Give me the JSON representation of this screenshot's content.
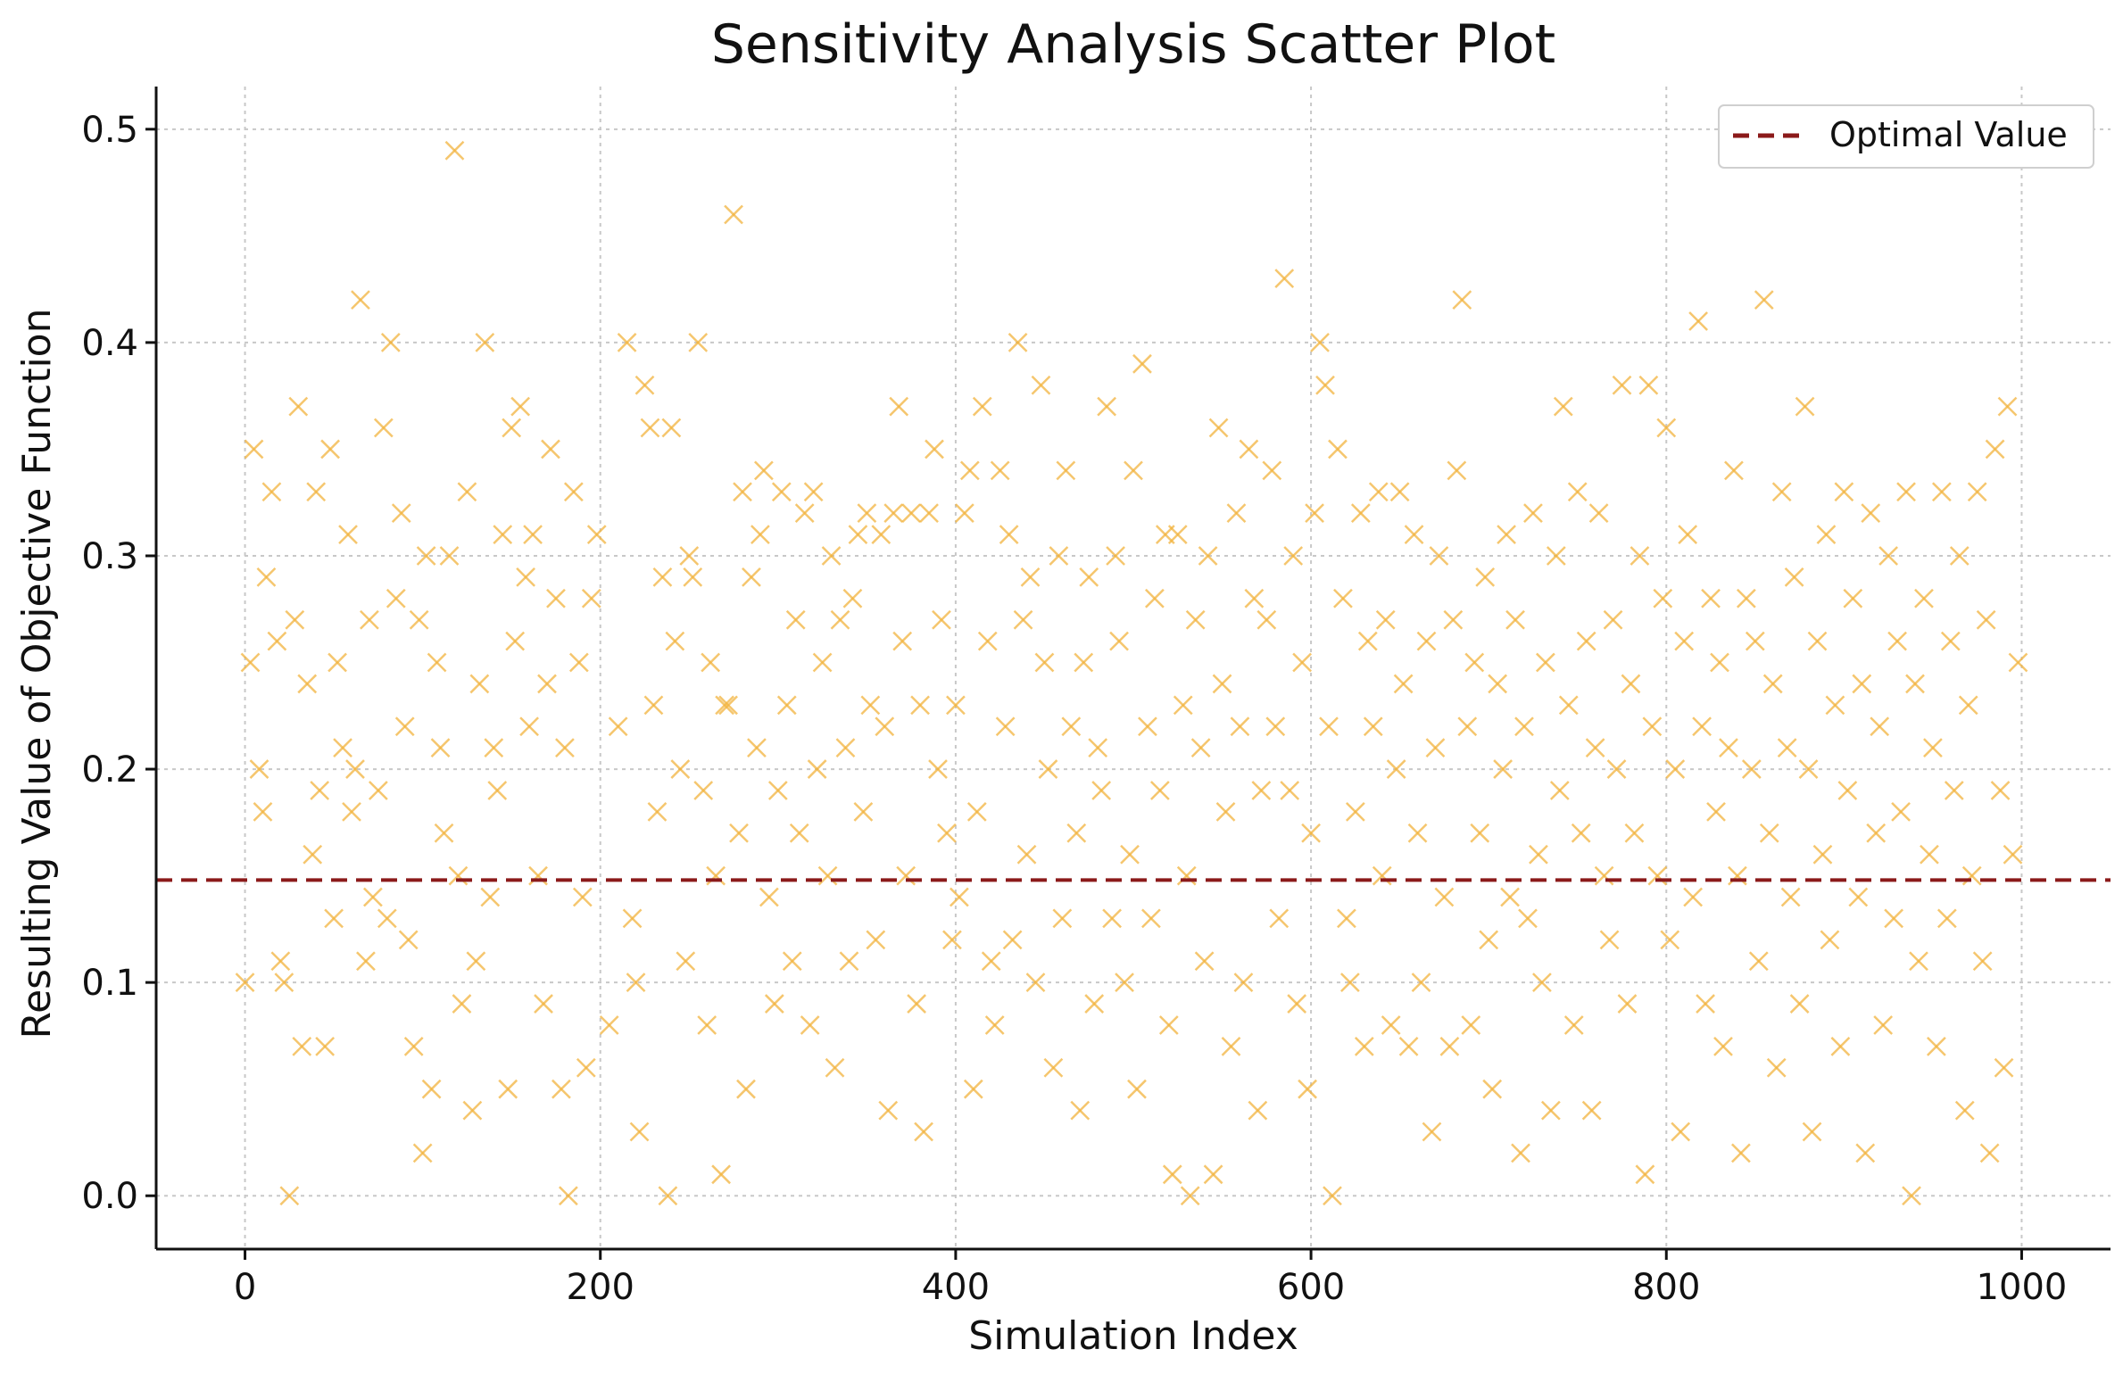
{
  "chart_data": {
    "type": "scatter",
    "title": "Sensitivity Analysis Scatter Plot",
    "xlabel": "Simulation Index",
    "ylabel": "Resulting Value of Objective Function",
    "xlim": [
      -50,
      1050
    ],
    "ylim": [
      -0.025,
      0.52
    ],
    "xticks": [
      0,
      200,
      400,
      600,
      800,
      1000
    ],
    "yticks": [
      0.0,
      0.1,
      0.2,
      0.3,
      0.4,
      0.5
    ],
    "xtick_labels": [
      "0",
      "200",
      "400",
      "600",
      "800",
      "1000"
    ],
    "ytick_labels": [
      "0.0",
      "0.1",
      "0.2",
      "0.3",
      "0.4",
      "0.5"
    ],
    "grid": true,
    "legend_position": "top-right",
    "marker": "x",
    "marker_color": "#f2b33d",
    "points": [
      [
        0,
        0.1
      ],
      [
        3,
        0.25
      ],
      [
        5,
        0.35
      ],
      [
        8,
        0.2
      ],
      [
        10,
        0.18
      ],
      [
        12,
        0.29
      ],
      [
        15,
        0.33
      ],
      [
        18,
        0.26
      ],
      [
        20,
        0.11
      ],
      [
        22,
        0.1
      ],
      [
        25,
        0.0
      ],
      [
        28,
        0.27
      ],
      [
        30,
        0.37
      ],
      [
        32,
        0.07
      ],
      [
        35,
        0.24
      ],
      [
        38,
        0.16
      ],
      [
        40,
        0.33
      ],
      [
        42,
        0.19
      ],
      [
        45,
        0.07
      ],
      [
        48,
        0.35
      ],
      [
        50,
        0.13
      ],
      [
        52,
        0.25
      ],
      [
        55,
        0.21
      ],
      [
        58,
        0.31
      ],
      [
        60,
        0.18
      ],
      [
        62,
        0.2
      ],
      [
        65,
        0.42
      ],
      [
        68,
        0.11
      ],
      [
        70,
        0.27
      ],
      [
        72,
        0.14
      ],
      [
        75,
        0.19
      ],
      [
        78,
        0.36
      ],
      [
        80,
        0.13
      ],
      [
        82,
        0.4
      ],
      [
        85,
        0.28
      ],
      [
        88,
        0.32
      ],
      [
        90,
        0.22
      ],
      [
        92,
        0.12
      ],
      [
        95,
        0.07
      ],
      [
        98,
        0.27
      ],
      [
        100,
        0.02
      ],
      [
        102,
        0.3
      ],
      [
        105,
        0.05
      ],
      [
        108,
        0.25
      ],
      [
        110,
        0.21
      ],
      [
        112,
        0.17
      ],
      [
        115,
        0.3
      ],
      [
        118,
        0.49
      ],
      [
        120,
        0.15
      ],
      [
        122,
        0.09
      ],
      [
        125,
        0.33
      ],
      [
        128,
        0.04
      ],
      [
        130,
        0.11
      ],
      [
        132,
        0.24
      ],
      [
        135,
        0.4
      ],
      [
        138,
        0.14
      ],
      [
        140,
        0.21
      ],
      [
        142,
        0.19
      ],
      [
        145,
        0.31
      ],
      [
        148,
        0.05
      ],
      [
        150,
        0.36
      ],
      [
        152,
        0.26
      ],
      [
        155,
        0.37
      ],
      [
        158,
        0.29
      ],
      [
        160,
        0.22
      ],
      [
        162,
        0.31
      ],
      [
        165,
        0.15
      ],
      [
        168,
        0.09
      ],
      [
        170,
        0.24
      ],
      [
        172,
        0.35
      ],
      [
        175,
        0.28
      ],
      [
        178,
        0.05
      ],
      [
        180,
        0.21
      ],
      [
        182,
        0.0
      ],
      [
        185,
        0.33
      ],
      [
        188,
        0.25
      ],
      [
        190,
        0.14
      ],
      [
        192,
        0.06
      ],
      [
        195,
        0.28
      ],
      [
        198,
        0.31
      ],
      [
        205,
        0.08
      ],
      [
        210,
        0.22
      ],
      [
        215,
        0.4
      ],
      [
        218,
        0.13
      ],
      [
        220,
        0.1
      ],
      [
        222,
        0.03
      ],
      [
        225,
        0.38
      ],
      [
        228,
        0.36
      ],
      [
        230,
        0.23
      ],
      [
        232,
        0.18
      ],
      [
        235,
        0.29
      ],
      [
        238,
        0.0
      ],
      [
        240,
        0.36
      ],
      [
        242,
        0.26
      ],
      [
        245,
        0.2
      ],
      [
        248,
        0.11
      ],
      [
        250,
        0.3
      ],
      [
        252,
        0.29
      ],
      [
        255,
        0.4
      ],
      [
        258,
        0.19
      ],
      [
        260,
        0.08
      ],
      [
        262,
        0.25
      ],
      [
        265,
        0.15
      ],
      [
        268,
        0.01
      ],
      [
        270,
        0.23
      ],
      [
        272,
        0.23
      ],
      [
        275,
        0.46
      ],
      [
        278,
        0.17
      ],
      [
        280,
        0.33
      ],
      [
        282,
        0.05
      ],
      [
        285,
        0.29
      ],
      [
        288,
        0.21
      ],
      [
        290,
        0.31
      ],
      [
        292,
        0.34
      ],
      [
        295,
        0.14
      ],
      [
        298,
        0.09
      ],
      [
        300,
        0.19
      ],
      [
        302,
        0.33
      ],
      [
        305,
        0.23
      ],
      [
        308,
        0.11
      ],
      [
        310,
        0.27
      ],
      [
        312,
        0.17
      ],
      [
        315,
        0.32
      ],
      [
        318,
        0.08
      ],
      [
        320,
        0.33
      ],
      [
        322,
        0.2
      ],
      [
        325,
        0.25
      ],
      [
        328,
        0.15
      ],
      [
        330,
        0.3
      ],
      [
        332,
        0.06
      ],
      [
        335,
        0.27
      ],
      [
        338,
        0.21
      ],
      [
        340,
        0.11
      ],
      [
        342,
        0.28
      ],
      [
        345,
        0.31
      ],
      [
        348,
        0.18
      ],
      [
        350,
        0.32
      ],
      [
        352,
        0.23
      ],
      [
        355,
        0.12
      ],
      [
        358,
        0.31
      ],
      [
        360,
        0.22
      ],
      [
        362,
        0.04
      ],
      [
        365,
        0.32
      ],
      [
        368,
        0.37
      ],
      [
        370,
        0.26
      ],
      [
        372,
        0.15
      ],
      [
        375,
        0.32
      ],
      [
        378,
        0.09
      ],
      [
        380,
        0.23
      ],
      [
        382,
        0.03
      ],
      [
        385,
        0.32
      ],
      [
        388,
        0.35
      ],
      [
        390,
        0.2
      ],
      [
        392,
        0.27
      ],
      [
        395,
        0.17
      ],
      [
        398,
        0.12
      ],
      [
        400,
        0.23
      ],
      [
        402,
        0.14
      ],
      [
        405,
        0.32
      ],
      [
        408,
        0.34
      ],
      [
        410,
        0.05
      ],
      [
        412,
        0.18
      ],
      [
        415,
        0.37
      ],
      [
        418,
        0.26
      ],
      [
        420,
        0.11
      ],
      [
        422,
        0.08
      ],
      [
        425,
        0.34
      ],
      [
        428,
        0.22
      ],
      [
        430,
        0.31
      ],
      [
        432,
        0.12
      ],
      [
        435,
        0.4
      ],
      [
        438,
        0.27
      ],
      [
        440,
        0.16
      ],
      [
        442,
        0.29
      ],
      [
        445,
        0.1
      ],
      [
        448,
        0.38
      ],
      [
        450,
        0.25
      ],
      [
        452,
        0.2
      ],
      [
        455,
        0.06
      ],
      [
        458,
        0.3
      ],
      [
        460,
        0.13
      ],
      [
        462,
        0.34
      ],
      [
        465,
        0.22
      ],
      [
        468,
        0.17
      ],
      [
        470,
        0.04
      ],
      [
        472,
        0.25
      ],
      [
        475,
        0.29
      ],
      [
        478,
        0.09
      ],
      [
        480,
        0.21
      ],
      [
        482,
        0.19
      ],
      [
        485,
        0.37
      ],
      [
        488,
        0.13
      ],
      [
        490,
        0.3
      ],
      [
        492,
        0.26
      ],
      [
        495,
        0.1
      ],
      [
        498,
        0.16
      ],
      [
        500,
        0.34
      ],
      [
        502,
        0.05
      ],
      [
        505,
        0.39
      ],
      [
        508,
        0.22
      ],
      [
        510,
        0.13
      ],
      [
        512,
        0.28
      ],
      [
        515,
        0.19
      ],
      [
        518,
        0.31
      ],
      [
        520,
        0.08
      ],
      [
        522,
        0.01
      ],
      [
        525,
        0.31
      ],
      [
        528,
        0.23
      ],
      [
        530,
        0.15
      ],
      [
        532,
        0.0
      ],
      [
        535,
        0.27
      ],
      [
        538,
        0.21
      ],
      [
        540,
        0.11
      ],
      [
        542,
        0.3
      ],
      [
        545,
        0.01
      ],
      [
        548,
        0.36
      ],
      [
        550,
        0.24
      ],
      [
        552,
        0.18
      ],
      [
        555,
        0.07
      ],
      [
        558,
        0.32
      ],
      [
        560,
        0.22
      ],
      [
        562,
        0.1
      ],
      [
        565,
        0.35
      ],
      [
        568,
        0.28
      ],
      [
        570,
        0.04
      ],
      [
        572,
        0.19
      ],
      [
        575,
        0.27
      ],
      [
        578,
        0.34
      ],
      [
        580,
        0.22
      ],
      [
        582,
        0.13
      ],
      [
        585,
        0.43
      ],
      [
        588,
        0.19
      ],
      [
        590,
        0.3
      ],
      [
        592,
        0.09
      ],
      [
        595,
        0.25
      ],
      [
        598,
        0.05
      ],
      [
        600,
        0.17
      ],
      [
        602,
        0.32
      ],
      [
        605,
        0.4
      ],
      [
        608,
        0.38
      ],
      [
        610,
        0.22
      ],
      [
        612,
        0.0
      ],
      [
        615,
        0.35
      ],
      [
        618,
        0.28
      ],
      [
        620,
        0.13
      ],
      [
        622,
        0.1
      ],
      [
        625,
        0.18
      ],
      [
        628,
        0.32
      ],
      [
        630,
        0.07
      ],
      [
        632,
        0.26
      ],
      [
        635,
        0.22
      ],
      [
        638,
        0.33
      ],
      [
        640,
        0.15
      ],
      [
        642,
        0.27
      ],
      [
        645,
        0.08
      ],
      [
        648,
        0.2
      ],
      [
        650,
        0.33
      ],
      [
        652,
        0.24
      ],
      [
        655,
        0.07
      ],
      [
        658,
        0.31
      ],
      [
        660,
        0.17
      ],
      [
        662,
        0.1
      ],
      [
        665,
        0.26
      ],
      [
        668,
        0.03
      ],
      [
        670,
        0.21
      ],
      [
        672,
        0.3
      ],
      [
        675,
        0.14
      ],
      [
        678,
        0.07
      ],
      [
        680,
        0.27
      ],
      [
        682,
        0.34
      ],
      [
        685,
        0.42
      ],
      [
        688,
        0.22
      ],
      [
        690,
        0.08
      ],
      [
        692,
        0.25
      ],
      [
        695,
        0.17
      ],
      [
        698,
        0.29
      ],
      [
        700,
        0.12
      ],
      [
        702,
        0.05
      ],
      [
        705,
        0.24
      ],
      [
        708,
        0.2
      ],
      [
        710,
        0.31
      ],
      [
        712,
        0.14
      ],
      [
        715,
        0.27
      ],
      [
        718,
        0.02
      ],
      [
        720,
        0.22
      ],
      [
        722,
        0.13
      ],
      [
        725,
        0.32
      ],
      [
        728,
        0.16
      ],
      [
        730,
        0.1
      ],
      [
        732,
        0.25
      ],
      [
        735,
        0.04
      ],
      [
        738,
        0.3
      ],
      [
        740,
        0.19
      ],
      [
        742,
        0.37
      ],
      [
        745,
        0.23
      ],
      [
        748,
        0.08
      ],
      [
        750,
        0.33
      ],
      [
        752,
        0.17
      ],
      [
        755,
        0.26
      ],
      [
        758,
        0.04
      ],
      [
        760,
        0.21
      ],
      [
        762,
        0.32
      ],
      [
        765,
        0.15
      ],
      [
        768,
        0.12
      ],
      [
        770,
        0.27
      ],
      [
        772,
        0.2
      ],
      [
        775,
        0.38
      ],
      [
        778,
        0.09
      ],
      [
        780,
        0.24
      ],
      [
        782,
        0.17
      ],
      [
        785,
        0.3
      ],
      [
        788,
        0.01
      ],
      [
        790,
        0.38
      ],
      [
        792,
        0.22
      ],
      [
        795,
        0.15
      ],
      [
        798,
        0.28
      ],
      [
        800,
        0.36
      ],
      [
        802,
        0.12
      ],
      [
        805,
        0.2
      ],
      [
        808,
        0.03
      ],
      [
        810,
        0.26
      ],
      [
        812,
        0.31
      ],
      [
        815,
        0.14
      ],
      [
        818,
        0.41
      ],
      [
        820,
        0.22
      ],
      [
        822,
        0.09
      ],
      [
        825,
        0.28
      ],
      [
        828,
        0.18
      ],
      [
        830,
        0.25
      ],
      [
        832,
        0.07
      ],
      [
        835,
        0.21
      ],
      [
        838,
        0.34
      ],
      [
        840,
        0.15
      ],
      [
        842,
        0.02
      ],
      [
        845,
        0.28
      ],
      [
        848,
        0.2
      ],
      [
        850,
        0.26
      ],
      [
        852,
        0.11
      ],
      [
        855,
        0.42
      ],
      [
        858,
        0.17
      ],
      [
        860,
        0.24
      ],
      [
        862,
        0.06
      ],
      [
        865,
        0.33
      ],
      [
        868,
        0.21
      ],
      [
        870,
        0.14
      ],
      [
        872,
        0.29
      ],
      [
        875,
        0.09
      ],
      [
        878,
        0.37
      ],
      [
        880,
        0.2
      ],
      [
        882,
        0.03
      ],
      [
        885,
        0.26
      ],
      [
        888,
        0.16
      ],
      [
        890,
        0.31
      ],
      [
        892,
        0.12
      ],
      [
        895,
        0.23
      ],
      [
        898,
        0.07
      ],
      [
        900,
        0.33
      ],
      [
        902,
        0.19
      ],
      [
        905,
        0.28
      ],
      [
        908,
        0.14
      ],
      [
        910,
        0.24
      ],
      [
        912,
        0.02
      ],
      [
        915,
        0.32
      ],
      [
        918,
        0.17
      ],
      [
        920,
        0.22
      ],
      [
        922,
        0.08
      ],
      [
        925,
        0.3
      ],
      [
        928,
        0.13
      ],
      [
        930,
        0.26
      ],
      [
        932,
        0.18
      ],
      [
        935,
        0.33
      ],
      [
        938,
        0.0
      ],
      [
        940,
        0.24
      ],
      [
        942,
        0.11
      ],
      [
        945,
        0.28
      ],
      [
        948,
        0.16
      ],
      [
        950,
        0.21
      ],
      [
        952,
        0.07
      ],
      [
        955,
        0.33
      ],
      [
        958,
        0.13
      ],
      [
        960,
        0.26
      ],
      [
        962,
        0.19
      ],
      [
        965,
        0.3
      ],
      [
        968,
        0.04
      ],
      [
        970,
        0.23
      ],
      [
        972,
        0.15
      ],
      [
        975,
        0.33
      ],
      [
        978,
        0.11
      ],
      [
        980,
        0.27
      ],
      [
        982,
        0.02
      ],
      [
        985,
        0.35
      ],
      [
        988,
        0.19
      ],
      [
        990,
        0.06
      ],
      [
        992,
        0.37
      ],
      [
        995,
        0.16
      ],
      [
        998,
        0.25
      ]
    ],
    "series": [
      {
        "name": "Optimal Value",
        "kind": "hline",
        "y": 0.148,
        "color": "#8b1a1a",
        "style": "dashed"
      }
    ]
  }
}
